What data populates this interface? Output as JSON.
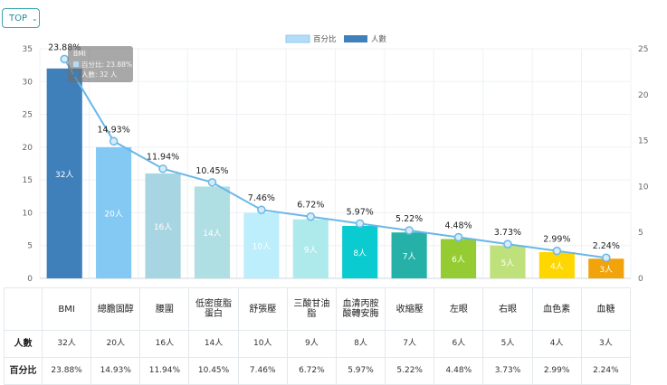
{
  "control": {
    "label": "TOP"
  },
  "chart_data": {
    "type": "bar",
    "categories": [
      "BMI",
      "總膽固醇",
      "腰圍",
      "低密度脂蛋白",
      "舒張壓",
      "三酸甘油脂",
      "血清丙胺酸轉安脢",
      "收縮壓",
      "左眼",
      "右眼",
      "血色素",
      "血糖"
    ],
    "series": [
      {
        "name": "人數",
        "type": "bar",
        "axis": "left",
        "values": [
          32,
          20,
          16,
          14,
          10,
          9,
          8,
          7,
          6,
          5,
          4,
          3
        ],
        "labels": [
          "32人",
          "20人",
          "16人",
          "14人",
          "10人",
          "9人",
          "8人",
          "7人",
          "6人",
          "5人",
          "4人",
          "3人"
        ]
      },
      {
        "name": "百分比",
        "type": "line",
        "axis": "right",
        "values": [
          23.88,
          14.93,
          11.94,
          10.45,
          7.46,
          6.72,
          5.97,
          5.22,
          4.48,
          3.73,
          2.99,
          2.24
        ],
        "labels": [
          "23.88%",
          "14.93%",
          "11.94%",
          "10.45%",
          "7.46%",
          "6.72%",
          "5.97%",
          "5.22%",
          "4.48%",
          "3.73%",
          "2.99%",
          "2.24%"
        ]
      }
    ],
    "bar_colors": [
      "#3f7fba",
      "#84c9f4",
      "#a8d5e2",
      "#b0dfe3",
      "#bdeefb",
      "#aeeaec",
      "#09cbd0",
      "#25b1a7",
      "#95cc33",
      "#bfe17b",
      "#ffd700",
      "#f0a30a"
    ],
    "line_color": "#6ab7e8",
    "y_left": {
      "min": 0,
      "max": 35,
      "ticks": [
        "0",
        "5",
        "10",
        "15",
        "20",
        "25",
        "30",
        "35"
      ]
    },
    "y_right": {
      "min": 0,
      "max": 25,
      "ticks": [
        "0",
        "5",
        "10",
        "15",
        "20",
        "25"
      ]
    },
    "legend": {
      "position": "top-center",
      "items": [
        {
          "label": "百分比",
          "color": "#b3ddf6"
        },
        {
          "label": "人數",
          "color": "#3f7fba"
        }
      ]
    },
    "tooltip": {
      "title": "BMI",
      "lines": [
        "百分比: 23.88%",
        "人數: 32 人"
      ]
    },
    "grid": true
  },
  "table": {
    "row_labels": [
      "人數",
      "百分比"
    ],
    "headers": [
      "BMI",
      "總膽固醇",
      "腰圍",
      "低密度脂蛋白",
      "舒張壓",
      "三酸甘油脂",
      "血清丙胺酸轉安脢",
      "收縮壓",
      "左眼",
      "右眼",
      "血色素",
      "血糖"
    ],
    "counts": [
      "32人",
      "20人",
      "16人",
      "14人",
      "10人",
      "9人",
      "8人",
      "7人",
      "6人",
      "5人",
      "4人",
      "3人"
    ],
    "percents": [
      "23.88%",
      "14.93%",
      "11.94%",
      "10.45%",
      "7.46%",
      "6.72%",
      "5.97%",
      "5.22%",
      "4.48%",
      "3.73%",
      "2.99%",
      "2.24%"
    ]
  }
}
